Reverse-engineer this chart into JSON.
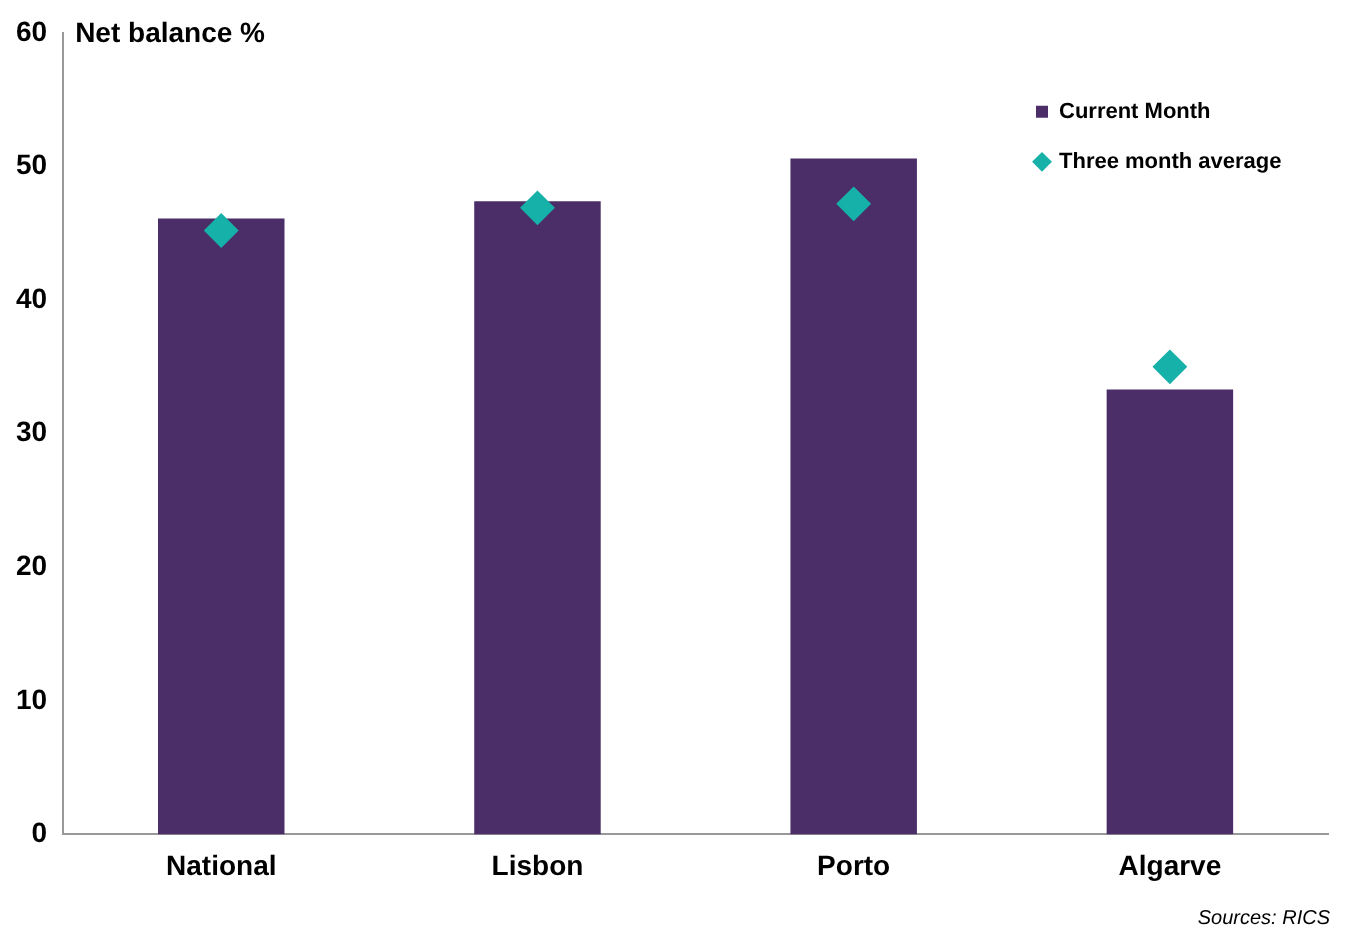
{
  "chart_data": {
    "type": "bar",
    "ylabel": "Net balance %",
    "categories": [
      "National",
      "Lisbon",
      "Porto",
      "Algarve"
    ],
    "series": [
      {
        "name": "Current Month",
        "color": "#4b2e68",
        "values": [
          46.1,
          47.4,
          50.6,
          33.3
        ]
      },
      {
        "name": "Three month average",
        "type": "scatter",
        "color": "#16b1a8",
        "values": [
          45.2,
          46.9,
          47.2,
          35.0
        ]
      }
    ],
    "marker": "diamond",
    "ylim": [
      0,
      60
    ],
    "yticks": [
      0,
      10,
      20,
      30,
      40,
      50,
      60
    ],
    "grid": false,
    "legend": "top right",
    "annotations": [
      "Sources: RICS"
    ]
  }
}
